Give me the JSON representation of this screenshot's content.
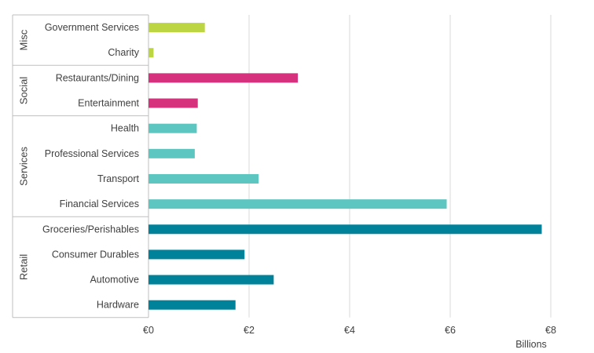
{
  "chart_data": {
    "type": "bar",
    "orientation": "horizontal",
    "title": "",
    "xlabel": "",
    "ylabel": "",
    "x_unit_label": "Billions",
    "xlim": [
      0,
      8
    ],
    "x_ticks": [
      0,
      2,
      4,
      6,
      8
    ],
    "x_tick_labels": [
      "€0",
      "€2",
      "€4",
      "€6",
      "€8"
    ],
    "grid": "vertical",
    "legend": "none",
    "groups": [
      {
        "name": "Misc",
        "color": "#bcd542",
        "categories": [
          "Government Services",
          "Charity"
        ],
        "values": [
          1.12,
          0.1
        ]
      },
      {
        "name": "Social",
        "color": "#d6317d",
        "categories": [
          "Restaurants/Dining",
          "Entertainment"
        ],
        "values": [
          2.97,
          0.98
        ]
      },
      {
        "name": "Services",
        "color": "#5ec6c0",
        "categories": [
          "Health",
          "Professional Services",
          "Transport",
          "Financial Services"
        ],
        "values": [
          0.96,
          0.92,
          2.19,
          5.93
        ]
      },
      {
        "name": "Retail",
        "color": "#00829b",
        "categories": [
          "Groceries/Perishables",
          "Consumer Durables",
          "Automotive",
          "Hardware"
        ],
        "values": [
          7.82,
          1.91,
          2.49,
          1.73
        ]
      }
    ]
  }
}
